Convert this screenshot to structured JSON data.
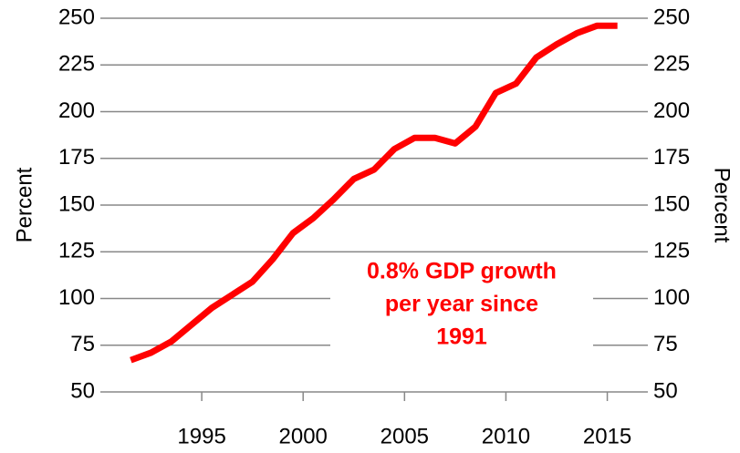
{
  "chart_data": {
    "type": "line",
    "ylabel": "Percent",
    "y2label": "Percent",
    "annotation": [
      "0.8% GDP growth",
      "per year since",
      "1991"
    ],
    "annotation_color": "#ff0000",
    "x": [
      1991.5,
      1992.5,
      1993.5,
      1994.5,
      1995.5,
      1996.5,
      1997.5,
      1998.5,
      1999.5,
      2000.5,
      2001.5,
      2002.5,
      2003.5,
      2004.5,
      2005.5,
      2006.5,
      2007.5,
      2008.5,
      2009.5,
      2010.5,
      2011.5,
      2012.5,
      2013.5,
      2014.5,
      2015.5
    ],
    "series": [
      {
        "color": "#ff0000",
        "values": [
          67,
          71,
          77,
          86,
          95,
          102,
          109,
          121,
          135,
          143,
          153,
          164,
          169,
          180,
          186,
          186,
          183,
          192,
          210,
          215,
          229,
          236,
          242,
          246,
          246
        ]
      }
    ],
    "xlim": [
      1990,
      2017
    ],
    "xticks": [
      1995,
      2000,
      2005,
      2010,
      2015
    ],
    "ylim": [
      50,
      250
    ],
    "yticks": [
      50,
      75,
      100,
      125,
      150,
      175,
      200,
      225,
      250
    ],
    "y2lim": [
      50,
      250
    ],
    "y2ticks": [
      50,
      75,
      100,
      125,
      150,
      175,
      200,
      225,
      250
    ],
    "grid": true
  }
}
